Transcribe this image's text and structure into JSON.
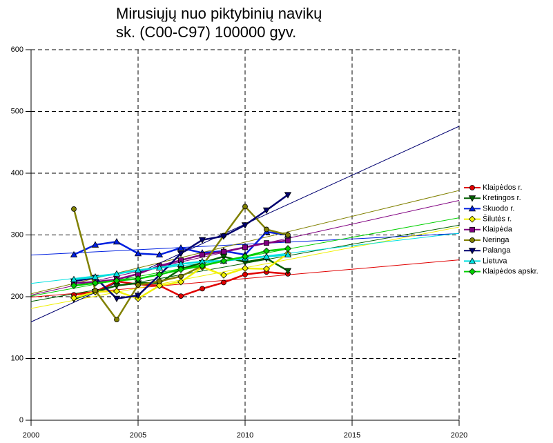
{
  "chart_data": {
    "type": "line",
    "title": [
      "Mirusiųjų nuo piktybinių navikų",
      "sk. (C00-C97) 100000 gyv."
    ],
    "x": [
      2002,
      2003,
      2004,
      2005,
      2006,
      2007,
      2008,
      2009,
      2010,
      2011,
      2012
    ],
    "xlim": [
      2000,
      2020
    ],
    "xticks": [
      2000,
      2005,
      2010,
      2015,
      2020
    ],
    "ylim": [
      0,
      600
    ],
    "yticks": [
      0,
      100,
      200,
      300,
      400,
      500,
      600
    ],
    "grid": true,
    "trendline": true,
    "legend": "right",
    "series": [
      {
        "name": "Klaipėdos r.",
        "color": "#e00000",
        "marker": "circle",
        "values": [
          203,
          208,
          225,
          220,
          218,
          201,
          213,
          223,
          236,
          240,
          237
        ]
      },
      {
        "name": "Kretingos r.",
        "color": "#006000",
        "marker": "tri-down",
        "values": [
          196,
          208,
          218,
          222,
          222,
          245,
          255,
          265,
          256,
          262,
          242
        ]
      },
      {
        "name": "Skuodo r.",
        "color": "#0020e0",
        "marker": "tri-up",
        "values": [
          268,
          284,
          289,
          270,
          268,
          279,
          271,
          274,
          268,
          305,
          300
        ]
      },
      {
        "name": "Šilutės r.",
        "color": "#f0f000",
        "marker": "diamond",
        "values": [
          198,
          208,
          209,
          197,
          218,
          224,
          248,
          235,
          246,
          245,
          270
        ]
      },
      {
        "name": "Klaipėda",
        "color": "#800080",
        "marker": "square",
        "values": [
          222,
          224,
          228,
          237,
          250,
          259,
          268,
          273,
          280,
          287,
          291
        ]
      },
      {
        "name": "Neringa",
        "color": "#808000",
        "marker": "circle",
        "values": [
          342,
          210,
          163,
          219,
          225,
          233,
          250,
          299,
          346,
          309,
          300
        ]
      },
      {
        "name": "Palanga",
        "color": "#000070",
        "marker": "tri-down",
        "values": [
          225,
          231,
          197,
          202,
          235,
          270,
          292,
          298,
          316,
          340,
          365
        ]
      },
      {
        "name": "Lietuva",
        "color": "#00e0e0",
        "marker": "tri-up",
        "values": [
          228,
          232,
          237,
          243,
          247,
          253,
          257,
          258,
          262,
          265,
          268
        ]
      },
      {
        "name": "Klaipėdos apskr.",
        "color": "#00d000",
        "marker": "diamond",
        "values": [
          218,
          222,
          226,
          229,
          236,
          244,
          250,
          258,
          265,
          274,
          278
        ]
      }
    ]
  }
}
